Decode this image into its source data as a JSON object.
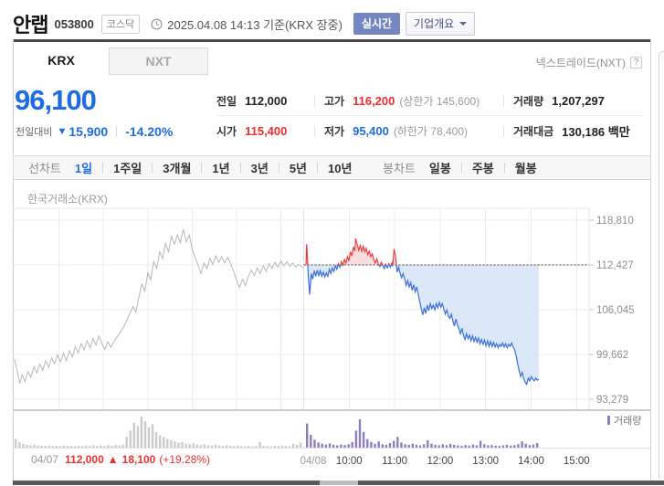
{
  "colors": {
    "up": "#ee2e2e",
    "down": "#1f6ce0",
    "line_up": "#ef3d3d",
    "line_down": "#3a6fd8",
    "fill_up": "#f9dddd",
    "fill_down": "#dce8f7",
    "prev_day_line": "#b8b8b8",
    "vol_prev": "#cbcbcb",
    "vol_today": "#8f7dc4",
    "realtime_btn": "#7587c1",
    "top_border": "#4a4a4a"
  },
  "header": {
    "stock_name": "안랩",
    "stock_code": "053800",
    "market_badge": "코스닥",
    "datetime": "2025.04.08 14:13 기준(KRX 장중)",
    "realtime_button": "실시간",
    "company_overview_button": "기업개요"
  },
  "market_tabs": {
    "krx": "KRX",
    "nxt": "NXT",
    "right_link": "넥스트레이드(NXT)",
    "help": "?"
  },
  "price": {
    "current": "96,100",
    "change_label": "전일대비",
    "change_arrow": "▼",
    "change_value": "15,900",
    "change_percent": "-14.20%"
  },
  "summary": {
    "prev": {
      "label": "전일",
      "value": "112,000"
    },
    "high": {
      "label": "고가",
      "value": "116,200",
      "extra": "(상한가 145,600)"
    },
    "volume": {
      "label": "거래량",
      "value": "1,207,297"
    },
    "open": {
      "label": "시가",
      "value": "115,400"
    },
    "low": {
      "label": "저가",
      "value": "95,400",
      "extra": "(하한가 78,400)"
    },
    "value": {
      "label": "거래대금",
      "value": "130,186 백만"
    }
  },
  "period_bar": {
    "line_group_label": "선차트",
    "line_tabs": [
      "1일",
      "1주일",
      "3개월",
      "1년",
      "3년",
      "5년",
      "10년"
    ],
    "active_line_tab": "1일",
    "candle_group_label": "봉차트",
    "candle_tabs": [
      "일봉",
      "주봉",
      "월봉"
    ]
  },
  "chart_data": {
    "type": "line",
    "title": "한국거래소(KRX)",
    "exchange_label": "한국거래소(KRX)",
    "grid": true,
    "legend_position": "bottom-right",
    "volume_legend": "거래량",
    "y_ticks": [
      118810,
      112427,
      106045,
      99662,
      93279
    ],
    "y_tick_labels": [
      "118,810",
      "112,427",
      "106,045",
      "99,662",
      "93,279"
    ],
    "ylim": [
      91700,
      120500
    ],
    "dotted_ref_value": 112427,
    "x_axis": {
      "day2_labels": [
        "04/08",
        "10:00",
        "11:00",
        "12:00",
        "13:00",
        "14:00",
        "15:00"
      ]
    },
    "footer_left": {
      "date": "04/07",
      "close": "112,000",
      "arrow": "▲",
      "change": "18,100",
      "percent": "(+19.28%)"
    },
    "series": [
      {
        "name": "04/07",
        "mode": "prev",
        "points": [
          [
            0,
            99000
          ],
          [
            4,
            97000
          ],
          [
            7,
            95500
          ],
          [
            10,
            96800
          ],
          [
            14,
            95800
          ],
          [
            18,
            97200
          ],
          [
            22,
            96400
          ],
          [
            26,
            97900
          ],
          [
            30,
            97000
          ],
          [
            34,
            98300
          ],
          [
            38,
            97400
          ],
          [
            42,
            98800
          ],
          [
            46,
            97800
          ],
          [
            50,
            99200
          ],
          [
            54,
            98300
          ],
          [
            58,
            99600
          ],
          [
            62,
            98600
          ],
          [
            66,
            99800
          ],
          [
            70,
            98800
          ],
          [
            74,
            100200
          ],
          [
            78,
            99300
          ],
          [
            82,
            100800
          ],
          [
            86,
            99900
          ],
          [
            90,
            101200
          ],
          [
            94,
            100300
          ],
          [
            98,
            101600
          ],
          [
            102,
            100600
          ],
          [
            106,
            101900
          ],
          [
            110,
            101000
          ],
          [
            114,
            102300
          ],
          [
            118,
            101200
          ],
          [
            122,
            100400
          ],
          [
            126,
            101500
          ],
          [
            130,
            100700
          ],
          [
            136,
            101800
          ],
          [
            142,
            102700
          ],
          [
            148,
            103700
          ],
          [
            154,
            105100
          ],
          [
            160,
            106500
          ],
          [
            164,
            105700
          ],
          [
            168,
            107900
          ],
          [
            172,
            109700
          ],
          [
            176,
            108700
          ],
          [
            180,
            111300
          ],
          [
            184,
            110300
          ],
          [
            188,
            112900
          ],
          [
            192,
            111900
          ],
          [
            196,
            114300
          ],
          [
            200,
            113300
          ],
          [
            204,
            115500
          ],
          [
            208,
            114300
          ],
          [
            212,
            116500
          ],
          [
            216,
            115400
          ],
          [
            220,
            116700
          ],
          [
            224,
            115600
          ],
          [
            228,
            117500
          ],
          [
            232,
            115700
          ],
          [
            236,
            116700
          ],
          [
            240,
            114700
          ],
          [
            244,
            113500
          ],
          [
            248,
            112400
          ],
          [
            252,
            111200
          ],
          [
            256,
            112700
          ],
          [
            260,
            111900
          ],
          [
            264,
            113400
          ],
          [
            268,
            112500
          ],
          [
            272,
            113700
          ],
          [
            276,
            112800
          ],
          [
            280,
            113600
          ],
          [
            284,
            112700
          ],
          [
            288,
            113500
          ],
          [
            292,
            112600
          ],
          [
            296,
            111500
          ],
          [
            300,
            110300
          ],
          [
            304,
            109200
          ],
          [
            308,
            110400
          ],
          [
            312,
            109500
          ],
          [
            316,
            110800
          ],
          [
            320,
            111700
          ],
          [
            324,
            110900
          ],
          [
            328,
            112000
          ],
          [
            332,
            111200
          ],
          [
            336,
            112300
          ],
          [
            340,
            111500
          ],
          [
            344,
            112600
          ],
          [
            348,
            111900
          ],
          [
            352,
            112800
          ],
          [
            356,
            112100
          ],
          [
            360,
            113000
          ],
          [
            364,
            112300
          ],
          [
            368,
            112900
          ],
          [
            372,
            112200
          ],
          [
            376,
            112700
          ],
          [
            380,
            112100
          ],
          [
            384,
            112500
          ],
          [
            390,
            112000
          ]
        ]
      },
      {
        "name": "04/08",
        "mode": "updown",
        "points": [
          [
            0,
            112400
          ],
          [
            1,
            115400
          ],
          [
            3,
            110900
          ],
          [
            5,
            108200
          ],
          [
            7,
            111200
          ],
          [
            9,
            110400
          ],
          [
            11,
            111600
          ],
          [
            13,
            110800
          ],
          [
            15,
            111700
          ],
          [
            17,
            110900
          ],
          [
            19,
            111600
          ],
          [
            21,
            110800
          ],
          [
            23,
            111400
          ],
          [
            25,
            110700
          ],
          [
            27,
            111300
          ],
          [
            29,
            110800
          ],
          [
            31,
            111800
          ],
          [
            33,
            111200
          ],
          [
            35,
            112000
          ],
          [
            37,
            111500
          ],
          [
            39,
            112300
          ],
          [
            41,
            111800
          ],
          [
            43,
            112600
          ],
          [
            45,
            112100
          ],
          [
            47,
            112900
          ],
          [
            49,
            112400
          ],
          [
            51,
            113200
          ],
          [
            53,
            112700
          ],
          [
            55,
            113600
          ],
          [
            57,
            113000
          ],
          [
            59,
            114300
          ],
          [
            61,
            113700
          ],
          [
            63,
            115000
          ],
          [
            65,
            114400
          ],
          [
            66,
            116200
          ],
          [
            68,
            115300
          ],
          [
            70,
            114500
          ],
          [
            72,
            115200
          ],
          [
            74,
            114400
          ],
          [
            76,
            115100
          ],
          [
            78,
            114300
          ],
          [
            80,
            114800
          ],
          [
            82,
            113900
          ],
          [
            84,
            114400
          ],
          [
            86,
            113600
          ],
          [
            88,
            114000
          ],
          [
            90,
            113200
          ],
          [
            92,
            112700
          ],
          [
            94,
            113300
          ],
          [
            96,
            112600
          ],
          [
            98,
            112200
          ],
          [
            100,
            112800
          ],
          [
            102,
            112300
          ],
          [
            104,
            111900
          ],
          [
            106,
            112500
          ],
          [
            108,
            112000
          ],
          [
            110,
            112600
          ],
          [
            112,
            112100
          ],
          [
            114,
            112700
          ],
          [
            115,
            112200
          ],
          [
            117,
            114700
          ],
          [
            119,
            113500
          ],
          [
            121,
            111400
          ],
          [
            123,
            112100
          ],
          [
            125,
            111200
          ],
          [
            127,
            110600
          ],
          [
            129,
            111200
          ],
          [
            131,
            110400
          ],
          [
            133,
            109500
          ],
          [
            135,
            110200
          ],
          [
            137,
            109300
          ],
          [
            139,
            109900
          ],
          [
            141,
            108800
          ],
          [
            143,
            109600
          ],
          [
            145,
            108600
          ],
          [
            147,
            109300
          ],
          [
            149,
            108200
          ],
          [
            151,
            107200
          ],
          [
            153,
            106200
          ],
          [
            155,
            105300
          ],
          [
            157,
            106300
          ],
          [
            159,
            105500
          ],
          [
            161,
            106700
          ],
          [
            163,
            105900
          ],
          [
            165,
            106900
          ],
          [
            167,
            106200
          ],
          [
            169,
            106700
          ],
          [
            171,
            106000
          ],
          [
            173,
            106900
          ],
          [
            175,
            106300
          ],
          [
            177,
            107100
          ],
          [
            179,
            106400
          ],
          [
            181,
            106900
          ],
          [
            183,
            106100
          ],
          [
            185,
            105400
          ],
          [
            187,
            106000
          ],
          [
            189,
            105100
          ],
          [
            191,
            104800
          ],
          [
            193,
            105400
          ],
          [
            195,
            104400
          ],
          [
            197,
            103700
          ],
          [
            199,
            104700
          ],
          [
            201,
            103900
          ],
          [
            203,
            103300
          ],
          [
            205,
            102600
          ],
          [
            207,
            103400
          ],
          [
            209,
            102400
          ],
          [
            211,
            101800
          ],
          [
            213,
            102600
          ],
          [
            215,
            101900
          ],
          [
            217,
            102400
          ],
          [
            219,
            101600
          ],
          [
            221,
            102300
          ],
          [
            223,
            101500
          ],
          [
            225,
            102100
          ],
          [
            227,
            101400
          ],
          [
            229,
            102000
          ],
          [
            231,
            101200
          ],
          [
            233,
            101800
          ],
          [
            235,
            101100
          ],
          [
            237,
            101700
          ],
          [
            239,
            100900
          ],
          [
            241,
            101600
          ],
          [
            243,
            100800
          ],
          [
            245,
            101500
          ],
          [
            247,
            100800
          ],
          [
            249,
            101400
          ],
          [
            251,
            100700
          ],
          [
            253,
            101200
          ],
          [
            255,
            100600
          ],
          [
            257,
            101100
          ],
          [
            259,
            100800
          ],
          [
            261,
            101300
          ],
          [
            263,
            100700
          ],
          [
            265,
            101200
          ],
          [
            267,
            100600
          ],
          [
            269,
            101100
          ],
          [
            271,
            100800
          ],
          [
            273,
            101300
          ],
          [
            275,
            100700
          ],
          [
            277,
            100300
          ],
          [
            279,
            99400
          ],
          [
            281,
            98300
          ],
          [
            283,
            97300
          ],
          [
            285,
            96500
          ],
          [
            287,
            97100
          ],
          [
            289,
            96200
          ],
          [
            291,
            95700
          ],
          [
            293,
            95400
          ],
          [
            295,
            96300
          ],
          [
            297,
            95900
          ],
          [
            299,
            96500
          ],
          [
            301,
            96100
          ],
          [
            303,
            95900
          ],
          [
            305,
            96300
          ],
          [
            307,
            96000
          ],
          [
            309,
            96100
          ]
        ]
      }
    ],
    "volume": {
      "day1": [
        28,
        18,
        12,
        9,
        8,
        10,
        7,
        6,
        6,
        7,
        5,
        6,
        5,
        7,
        5,
        6,
        4,
        6,
        5,
        7,
        6,
        8,
        6,
        7,
        5,
        8,
        6,
        9,
        7,
        10,
        35,
        55,
        80,
        70,
        100,
        85,
        65,
        75,
        50,
        40,
        34,
        28,
        24,
        20,
        16,
        18,
        13,
        11,
        14,
        10,
        8,
        11,
        8,
        7,
        9,
        7,
        6,
        8,
        6,
        5,
        7,
        5,
        4,
        6,
        4,
        5,
        18,
        6,
        5,
        4,
        6,
        5,
        7,
        6,
        5,
        12,
        9,
        16
      ],
      "day2": [
        85,
        45,
        28,
        18,
        14,
        11,
        15,
        10,
        8,
        11,
        9,
        12,
        20,
        60,
        100,
        55,
        30,
        20,
        14,
        22,
        12,
        10,
        16,
        24,
        38,
        18,
        12,
        10,
        14,
        10,
        8,
        12,
        26,
        14,
        10,
        8,
        12,
        9,
        13,
        10,
        8,
        6,
        9,
        7,
        11,
        8,
        24,
        12,
        8,
        9,
        7,
        6,
        8,
        10,
        7,
        9,
        12,
        22,
        14,
        9,
        11,
        16
      ]
    }
  }
}
